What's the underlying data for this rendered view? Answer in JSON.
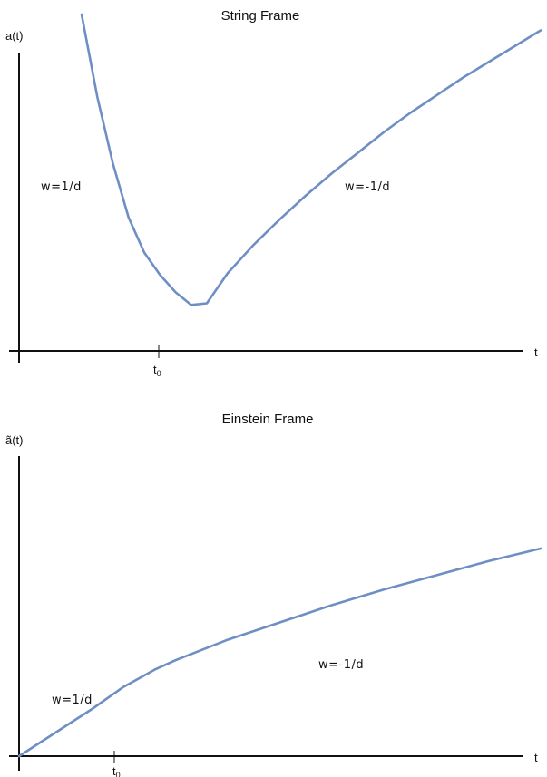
{
  "colors": {
    "curve": "#6f8fc4",
    "axis": "#111111"
  },
  "chart_data": [
    {
      "type": "line",
      "title": "String Frame",
      "ylabel": "a(t)",
      "xlabel": "t",
      "tick_label": "t",
      "tick_subscript": "0",
      "xlim": [
        0,
        10
      ],
      "ylim": [
        0,
        10
      ],
      "annotations": [
        "w=1/d",
        "w=-1/d"
      ],
      "series": [
        {
          "x": [
            1.2,
            1.5,
            1.8,
            2.1,
            2.4,
            2.7,
            3.0,
            3.3,
            3.6,
            4.0,
            4.5,
            5.0,
            5.5,
            6.0,
            6.5,
            7.0,
            7.5,
            8.0,
            8.5,
            9.0,
            9.5,
            10.0
          ],
          "values": [
            10.6,
            8.0,
            5.9,
            4.2,
            3.1,
            2.4,
            1.85,
            1.45,
            1.5,
            2.45,
            3.35,
            4.15,
            4.9,
            5.6,
            6.25,
            6.9,
            7.5,
            8.05,
            8.6,
            9.1,
            9.6,
            10.1
          ]
        }
      ]
    },
    {
      "type": "line",
      "title": "Einstein Frame",
      "ylabel": "ã(t)",
      "xlabel": "t",
      "tick_label": "t",
      "tick_subscript": "0",
      "xlim": [
        0,
        10
      ],
      "ylim": [
        0,
        10
      ],
      "annotations": [
        "w=1/d",
        "w=-1/d"
      ],
      "series": [
        {
          "x": [
            0.0,
            0.7,
            1.4,
            2.0,
            2.6,
            3.0,
            4.0,
            5.0,
            6.0,
            7.0,
            8.0,
            9.0,
            10.0
          ],
          "values": [
            0.0,
            0.75,
            1.5,
            2.2,
            2.75,
            3.05,
            3.7,
            4.25,
            4.8,
            5.3,
            5.75,
            6.2,
            6.6
          ]
        }
      ]
    }
  ]
}
